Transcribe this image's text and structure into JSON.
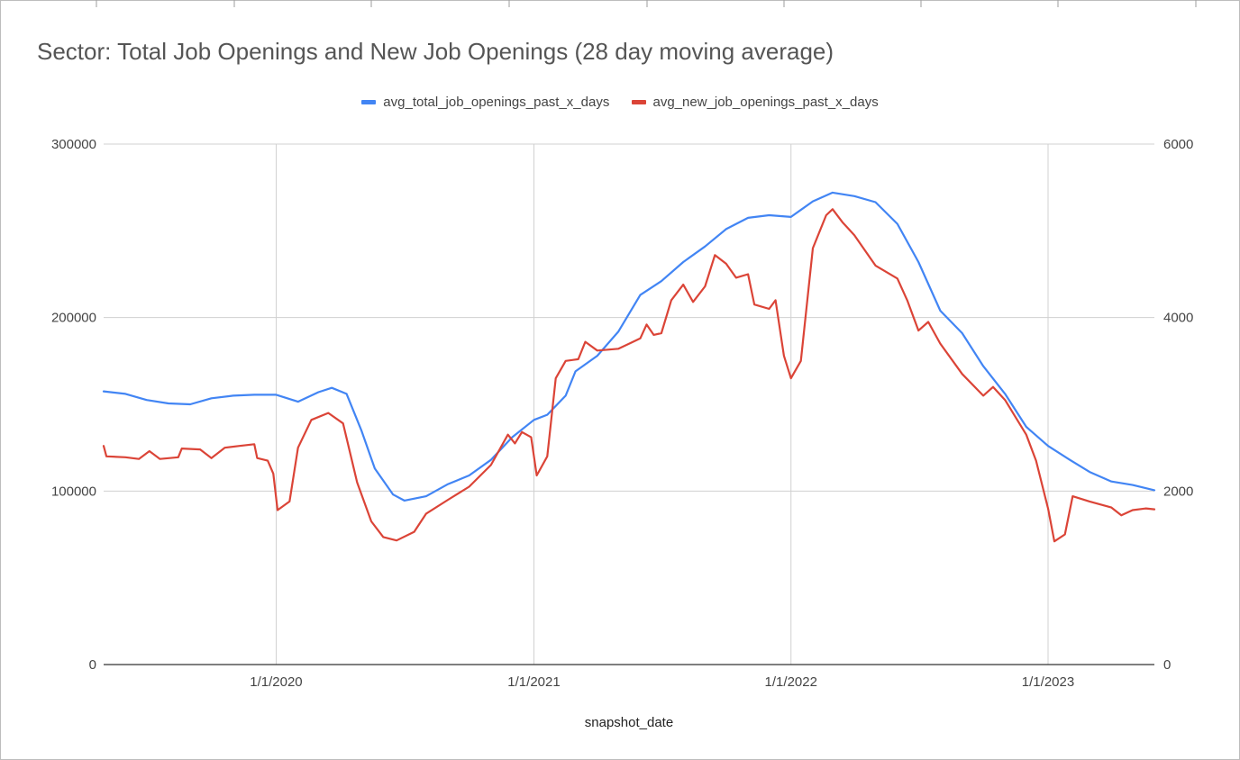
{
  "chart_data": {
    "type": "line",
    "title": "Sector: Total Job Openings and New Job Openings (28 day moving average)",
    "xlabel": "snapshot_date",
    "x_ticks": [
      "1/1/2020",
      "1/1/2021",
      "1/1/2022",
      "1/1/2023"
    ],
    "x_range": [
      "2019-05-01",
      "2023-06-01"
    ],
    "y_left": {
      "ticks": [
        "0",
        "100000",
        "200000",
        "300000"
      ],
      "range": [
        0,
        300000
      ]
    },
    "y_right": {
      "ticks": [
        "0",
        "2000",
        "4000",
        "6000"
      ],
      "range": [
        0,
        6000
      ]
    },
    "grid": true,
    "legend_position": "top",
    "series": [
      {
        "name": "avg_total_job_openings_past_x_days",
        "color": "#4285f4",
        "axis": "left",
        "points": [
          [
            "2019-05-01",
            157500
          ],
          [
            "2019-06-01",
            156000
          ],
          [
            "2019-07-01",
            152500
          ],
          [
            "2019-08-01",
            150500
          ],
          [
            "2019-09-01",
            150000
          ],
          [
            "2019-10-01",
            153500
          ],
          [
            "2019-11-01",
            155000
          ],
          [
            "2019-12-01",
            155500
          ],
          [
            "2020-01-01",
            155500
          ],
          [
            "2020-02-01",
            151500
          ],
          [
            "2020-03-01",
            157000
          ],
          [
            "2020-03-20",
            159500
          ],
          [
            "2020-04-10",
            156000
          ],
          [
            "2020-05-01",
            135000
          ],
          [
            "2020-05-20",
            113000
          ],
          [
            "2020-06-15",
            98000
          ],
          [
            "2020-07-01",
            94500
          ],
          [
            "2020-08-01",
            97000
          ],
          [
            "2020-09-01",
            104000
          ],
          [
            "2020-10-01",
            109000
          ],
          [
            "2020-11-01",
            118000
          ],
          [
            "2020-12-01",
            131000
          ],
          [
            "2021-01-01",
            141000
          ],
          [
            "2021-01-20",
            144000
          ],
          [
            "2021-02-15",
            155000
          ],
          [
            "2021-03-01",
            169000
          ],
          [
            "2021-04-01",
            178000
          ],
          [
            "2021-05-01",
            192000
          ],
          [
            "2021-06-01",
            213000
          ],
          [
            "2021-07-01",
            221000
          ],
          [
            "2021-08-01",
            232000
          ],
          [
            "2021-09-01",
            241000
          ],
          [
            "2021-10-01",
            251000
          ],
          [
            "2021-11-01",
            257500
          ],
          [
            "2021-12-01",
            259000
          ],
          [
            "2022-01-01",
            258000
          ],
          [
            "2022-02-01",
            267000
          ],
          [
            "2022-03-01",
            272000
          ],
          [
            "2022-04-01",
            270000
          ],
          [
            "2022-05-01",
            266500
          ],
          [
            "2022-06-01",
            254000
          ],
          [
            "2022-07-01",
            232000
          ],
          [
            "2022-08-01",
            204000
          ],
          [
            "2022-09-01",
            191000
          ],
          [
            "2022-10-01",
            172000
          ],
          [
            "2022-11-01",
            156000
          ],
          [
            "2022-12-01",
            137000
          ],
          [
            "2023-01-01",
            126000
          ],
          [
            "2023-02-01",
            118000
          ],
          [
            "2023-03-01",
            111000
          ],
          [
            "2023-04-01",
            105500
          ],
          [
            "2023-05-01",
            103500
          ],
          [
            "2023-06-01",
            100500
          ]
        ]
      },
      {
        "name": "avg_new_job_openings_past_x_days",
        "color": "#db4437",
        "axis": "right",
        "points": [
          [
            "2019-05-01",
            2520
          ],
          [
            "2019-05-05",
            2400
          ],
          [
            "2019-06-01",
            2390
          ],
          [
            "2019-06-20",
            2370
          ],
          [
            "2019-07-05",
            2460
          ],
          [
            "2019-07-20",
            2370
          ],
          [
            "2019-08-15",
            2390
          ],
          [
            "2019-08-20",
            2490
          ],
          [
            "2019-09-15",
            2480
          ],
          [
            "2019-10-01",
            2380
          ],
          [
            "2019-10-20",
            2500
          ],
          [
            "2019-11-10",
            2520
          ],
          [
            "2019-12-01",
            2540
          ],
          [
            "2019-12-05",
            2380
          ],
          [
            "2019-12-20",
            2350
          ],
          [
            "2019-12-28",
            2200
          ],
          [
            "2020-01-03",
            1780
          ],
          [
            "2020-01-20",
            1880
          ],
          [
            "2020-02-01",
            2500
          ],
          [
            "2020-02-20",
            2820
          ],
          [
            "2020-03-15",
            2900
          ],
          [
            "2020-04-05",
            2780
          ],
          [
            "2020-04-25",
            2100
          ],
          [
            "2020-05-15",
            1650
          ],
          [
            "2020-06-01",
            1470
          ],
          [
            "2020-06-20",
            1430
          ],
          [
            "2020-07-15",
            1530
          ],
          [
            "2020-08-01",
            1740
          ],
          [
            "2020-09-01",
            1900
          ],
          [
            "2020-10-01",
            2050
          ],
          [
            "2020-11-01",
            2300
          ],
          [
            "2020-11-25",
            2650
          ],
          [
            "2020-12-05",
            2550
          ],
          [
            "2020-12-15",
            2680
          ],
          [
            "2020-12-28",
            2620
          ],
          [
            "2021-01-05",
            2180
          ],
          [
            "2021-01-20",
            2400
          ],
          [
            "2021-02-01",
            3300
          ],
          [
            "2021-02-15",
            3500
          ],
          [
            "2021-03-05",
            3520
          ],
          [
            "2021-03-15",
            3720
          ],
          [
            "2021-04-01",
            3620
          ],
          [
            "2021-05-01",
            3640
          ],
          [
            "2021-06-01",
            3760
          ],
          [
            "2021-06-10",
            3920
          ],
          [
            "2021-06-20",
            3800
          ],
          [
            "2021-07-01",
            3820
          ],
          [
            "2021-07-15",
            4200
          ],
          [
            "2021-08-01",
            4380
          ],
          [
            "2021-08-15",
            4180
          ],
          [
            "2021-09-01",
            4360
          ],
          [
            "2021-09-15",
            4720
          ],
          [
            "2021-10-01",
            4620
          ],
          [
            "2021-10-15",
            4460
          ],
          [
            "2021-11-01",
            4500
          ],
          [
            "2021-11-10",
            4150
          ],
          [
            "2021-12-01",
            4100
          ],
          [
            "2021-12-10",
            4200
          ],
          [
            "2021-12-22",
            3560
          ],
          [
            "2022-01-01",
            3300
          ],
          [
            "2022-01-15",
            3500
          ],
          [
            "2022-02-01",
            4800
          ],
          [
            "2022-02-20",
            5180
          ],
          [
            "2022-03-01",
            5250
          ],
          [
            "2022-03-15",
            5100
          ],
          [
            "2022-04-01",
            4950
          ],
          [
            "2022-05-01",
            4600
          ],
          [
            "2022-06-01",
            4450
          ],
          [
            "2022-06-15",
            4200
          ],
          [
            "2022-07-01",
            3850
          ],
          [
            "2022-07-15",
            3950
          ],
          [
            "2022-08-01",
            3700
          ],
          [
            "2022-09-01",
            3350
          ],
          [
            "2022-10-01",
            3100
          ],
          [
            "2022-10-15",
            3200
          ],
          [
            "2022-11-01",
            3050
          ],
          [
            "2022-12-01",
            2650
          ],
          [
            "2022-12-15",
            2350
          ],
          [
            "2023-01-01",
            1800
          ],
          [
            "2023-01-10",
            1420
          ],
          [
            "2023-01-25",
            1500
          ],
          [
            "2023-02-05",
            1940
          ],
          [
            "2023-03-01",
            1880
          ],
          [
            "2023-04-01",
            1810
          ],
          [
            "2023-04-15",
            1720
          ],
          [
            "2023-05-01",
            1780
          ],
          [
            "2023-05-20",
            1800
          ],
          [
            "2023-06-01",
            1790
          ]
        ]
      }
    ]
  }
}
